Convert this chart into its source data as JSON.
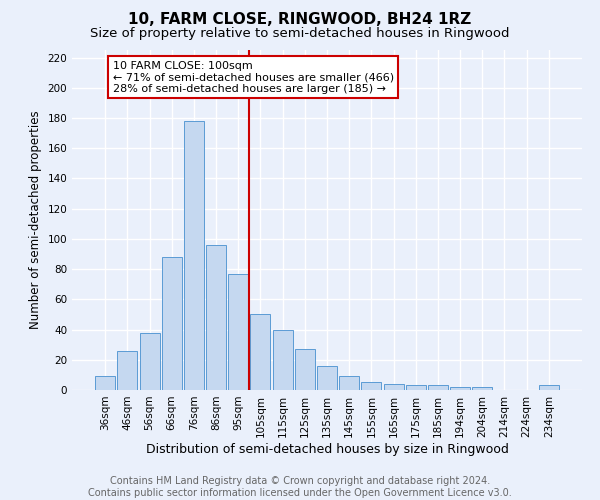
{
  "title": "10, FARM CLOSE, RINGWOOD, BH24 1RZ",
  "subtitle": "Size of property relative to semi-detached houses in Ringwood",
  "xlabel": "Distribution of semi-detached houses by size in Ringwood",
  "ylabel": "Number of semi-detached properties",
  "categories": [
    "36sqm",
    "46sqm",
    "56sqm",
    "66sqm",
    "76sqm",
    "86sqm",
    "95sqm",
    "105sqm",
    "115sqm",
    "125sqm",
    "135sqm",
    "145sqm",
    "155sqm",
    "165sqm",
    "175sqm",
    "185sqm",
    "194sqm",
    "204sqm",
    "214sqm",
    "224sqm",
    "234sqm"
  ],
  "values": [
    9,
    26,
    38,
    88,
    178,
    96,
    77,
    50,
    40,
    27,
    16,
    9,
    5,
    4,
    3,
    3,
    2,
    2,
    0,
    0,
    3
  ],
  "bar_color": "#c5d8f0",
  "bar_edge_color": "#5b9bd5",
  "background_color": "#eaf0fb",
  "grid_color": "#ffffff",
  "vline_color": "#cc0000",
  "annotation_line1": "10 FARM CLOSE: 100sqm",
  "annotation_line2": "← 71% of semi-detached houses are smaller (466)",
  "annotation_line3": "28% of semi-detached houses are larger (185) →",
  "annotation_box_color": "#ffffff",
  "annotation_box_edge_color": "#cc0000",
  "ylim": [
    0,
    225
  ],
  "yticks": [
    0,
    20,
    40,
    60,
    80,
    100,
    120,
    140,
    160,
    180,
    200,
    220
  ],
  "footer_text": "Contains HM Land Registry data © Crown copyright and database right 2024.\nContains public sector information licensed under the Open Government Licence v3.0.",
  "title_fontsize": 11,
  "subtitle_fontsize": 9.5,
  "xlabel_fontsize": 9,
  "ylabel_fontsize": 8.5,
  "tick_fontsize": 7.5,
  "annotation_fontsize": 8,
  "footer_fontsize": 7
}
